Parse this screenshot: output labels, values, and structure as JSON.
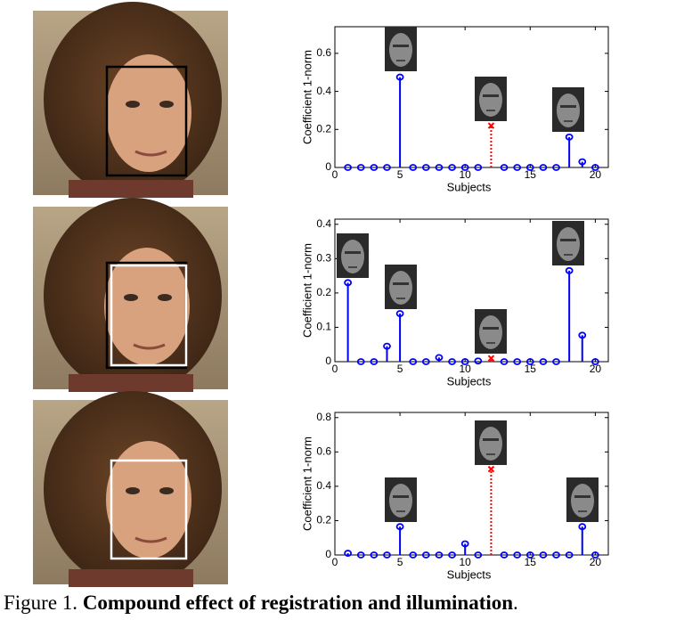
{
  "chart_data": [
    {
      "type": "stem",
      "xlabel": "Subjects",
      "ylabel": "Coefficient 1-norm",
      "x": [
        1,
        2,
        3,
        4,
        5,
        6,
        7,
        8,
        9,
        10,
        11,
        12,
        13,
        14,
        15,
        16,
        17,
        18,
        19,
        20
      ],
      "series": [
        {
          "color": "#0000ff",
          "marker": "o",
          "linestyle": "solid",
          "values": [
            0,
            0,
            0,
            0,
            0.475,
            0,
            0,
            0,
            0,
            0,
            0,
            null,
            0,
            0,
            0,
            0,
            0,
            0.16,
            0.03,
            0
          ]
        },
        {
          "color": "#ff0000",
          "marker": "x",
          "linestyle": "dotted",
          "values": [
            null,
            null,
            null,
            null,
            null,
            null,
            null,
            null,
            null,
            null,
            null,
            0.22,
            null,
            null,
            null,
            null,
            null,
            null,
            null,
            null
          ]
        }
      ],
      "xlim": [
        0,
        21
      ],
      "xticks": [
        0,
        5,
        10,
        15,
        20
      ],
      "ylim": [
        0,
        0.74
      ],
      "yticks": [
        0,
        0.2,
        0.4,
        0.6
      ]
    },
    {
      "type": "stem",
      "xlabel": "Subjects",
      "ylabel": "Coefficient 1-norm",
      "x": [
        1,
        2,
        3,
        4,
        5,
        6,
        7,
        8,
        9,
        10,
        11,
        12,
        13,
        14,
        15,
        16,
        17,
        18,
        19,
        20
      ],
      "series": [
        {
          "color": "#0000ff",
          "marker": "o",
          "linestyle": "solid",
          "values": [
            0.23,
            0,
            0,
            0.045,
            0.14,
            0,
            0,
            0.012,
            0,
            0,
            0.002,
            null,
            0,
            0,
            0,
            0,
            0,
            0.265,
            0.077,
            0
          ]
        },
        {
          "color": "#ff0000",
          "marker": "x",
          "linestyle": "dotted",
          "values": [
            null,
            null,
            null,
            null,
            null,
            null,
            null,
            null,
            null,
            null,
            null,
            0.01,
            null,
            null,
            null,
            null,
            null,
            null,
            null,
            null
          ]
        }
      ],
      "xlim": [
        0,
        21
      ],
      "xticks": [
        0,
        5,
        10,
        15,
        20
      ],
      "ylim": [
        0,
        0.415
      ],
      "yticks": [
        0,
        0.1,
        0.2,
        0.3,
        0.4
      ]
    },
    {
      "type": "stem",
      "xlabel": "Subjects",
      "ylabel": "Coefficient 1-norm",
      "x": [
        1,
        2,
        3,
        4,
        5,
        6,
        7,
        8,
        9,
        10,
        11,
        12,
        13,
        14,
        15,
        16,
        17,
        18,
        19,
        20
      ],
      "series": [
        {
          "color": "#0000ff",
          "marker": "o",
          "linestyle": "solid",
          "values": [
            0.01,
            0,
            0,
            0,
            0.165,
            0,
            0,
            0,
            0,
            0.065,
            0,
            null,
            0,
            0,
            0,
            0,
            0,
            0,
            0.165,
            0
          ]
        },
        {
          "color": "#ff0000",
          "marker": "x",
          "linestyle": "dotted",
          "values": [
            null,
            null,
            null,
            null,
            null,
            null,
            null,
            null,
            null,
            null,
            null,
            0.5,
            null,
            null,
            null,
            null,
            null,
            null,
            null,
            null
          ]
        }
      ],
      "xlim": [
        0,
        21
      ],
      "xticks": [
        0,
        5,
        10,
        15,
        20
      ],
      "ylim": [
        0,
        0.83
      ],
      "yticks": [
        0,
        0.2,
        0.4,
        0.6,
        0.8
      ]
    }
  ],
  "caption": {
    "label": "Figure 1.",
    "text": "Compound effect of registration and illumination",
    "end": "."
  }
}
